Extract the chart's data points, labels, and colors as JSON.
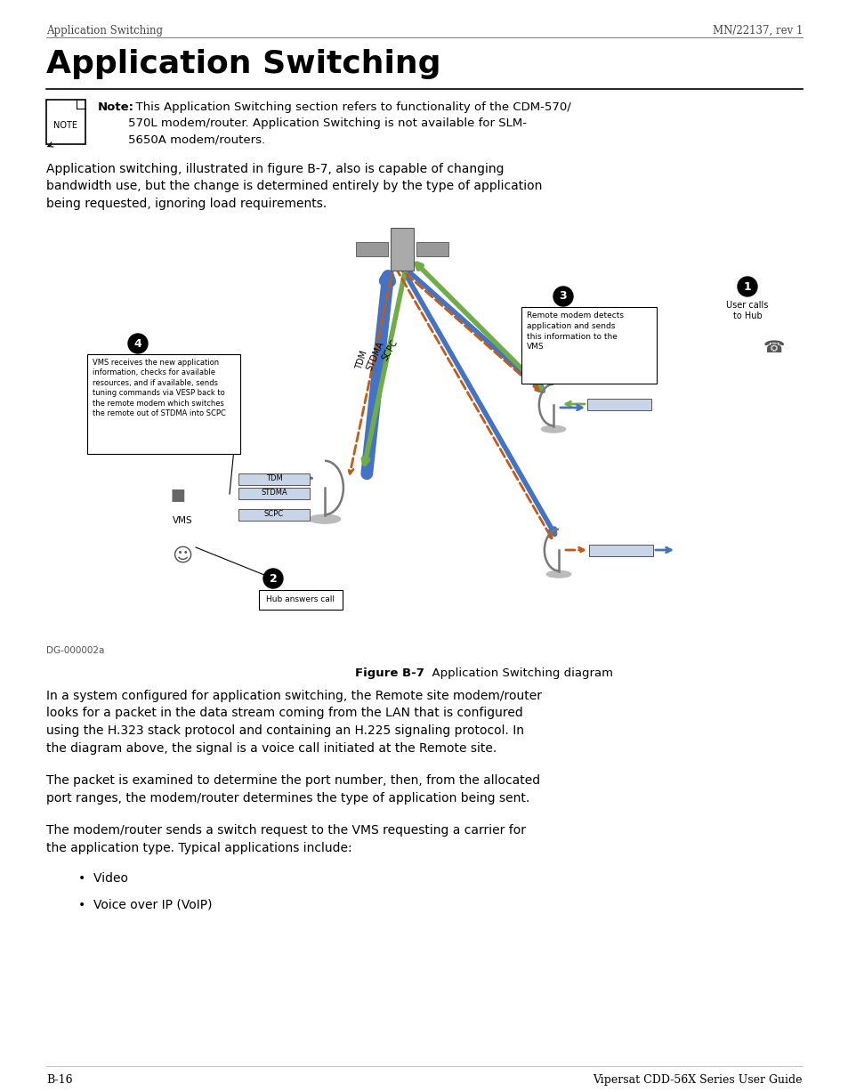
{
  "page_header_left": "Application Switching",
  "page_header_right": "MN/22137, rev 1",
  "main_title": "Application Switching",
  "note_text_bold": "Note:",
  "note_text_rest": "  This Application Switching section refers to functionality of the CDM-570/\n570L modem/router. Application Switching is not available for SLM-\n5650A modem/routers.",
  "body_text1": "Application switching, illustrated in figure B-7, also is capable of changing\nbandwidth use, but the change is determined entirely by the type of application\nbeing requested, ignoring load requirements.",
  "figure_caption_bold": "Figure B-7",
  "figure_caption_normal": "  Application Switching diagram",
  "figure_label": "DG-000002a",
  "body_text2": "In a system configured for application switching, the Remote site modem/router\nlooks for a packet in the data stream coming from the LAN that is configured\nusing the H.323 stack protocol and containing an H.225 signaling protocol. In\nthe diagram above, the signal is a voice call initiated at the Remote site.",
  "body_text3": "The packet is examined to determine the port number, then, from the allocated\nport ranges, the modem/router determines the type of application being sent.",
  "body_text4": "The modem/router sends a switch request to the VMS requesting a carrier for\nthe application type. Typical applications include:",
  "bullet1": "Video",
  "bullet2": "Voice over IP (VoIP)",
  "footer_left": "B-16",
  "footer_right": "Vipersat CDD-56X Series User Guide",
  "bg_color": "#ffffff",
  "text_color": "#000000",
  "diagram_arrow_blue": "#4472c4",
  "diagram_arrow_green": "#70ad47",
  "diagram_arrow_orange": "#c55a11",
  "box4_text": "VMS receives the new application\ninformation, checks for available\nresources, and if available, sends\ntuning commands via VESP back to\nthe remote modem which switches\nthe remote out of STDMA into SCPC",
  "box3_text": "Remote modem detects\napplication and sends\nthis information to the\nVMS",
  "user_calls_text": "User calls\nto Hub",
  "hub_answers_text": "Hub answers call",
  "vms_label": "VMS",
  "tdm_label": "TDM",
  "stdma_label": "STDMA",
  "scpc_label": "SCPC"
}
